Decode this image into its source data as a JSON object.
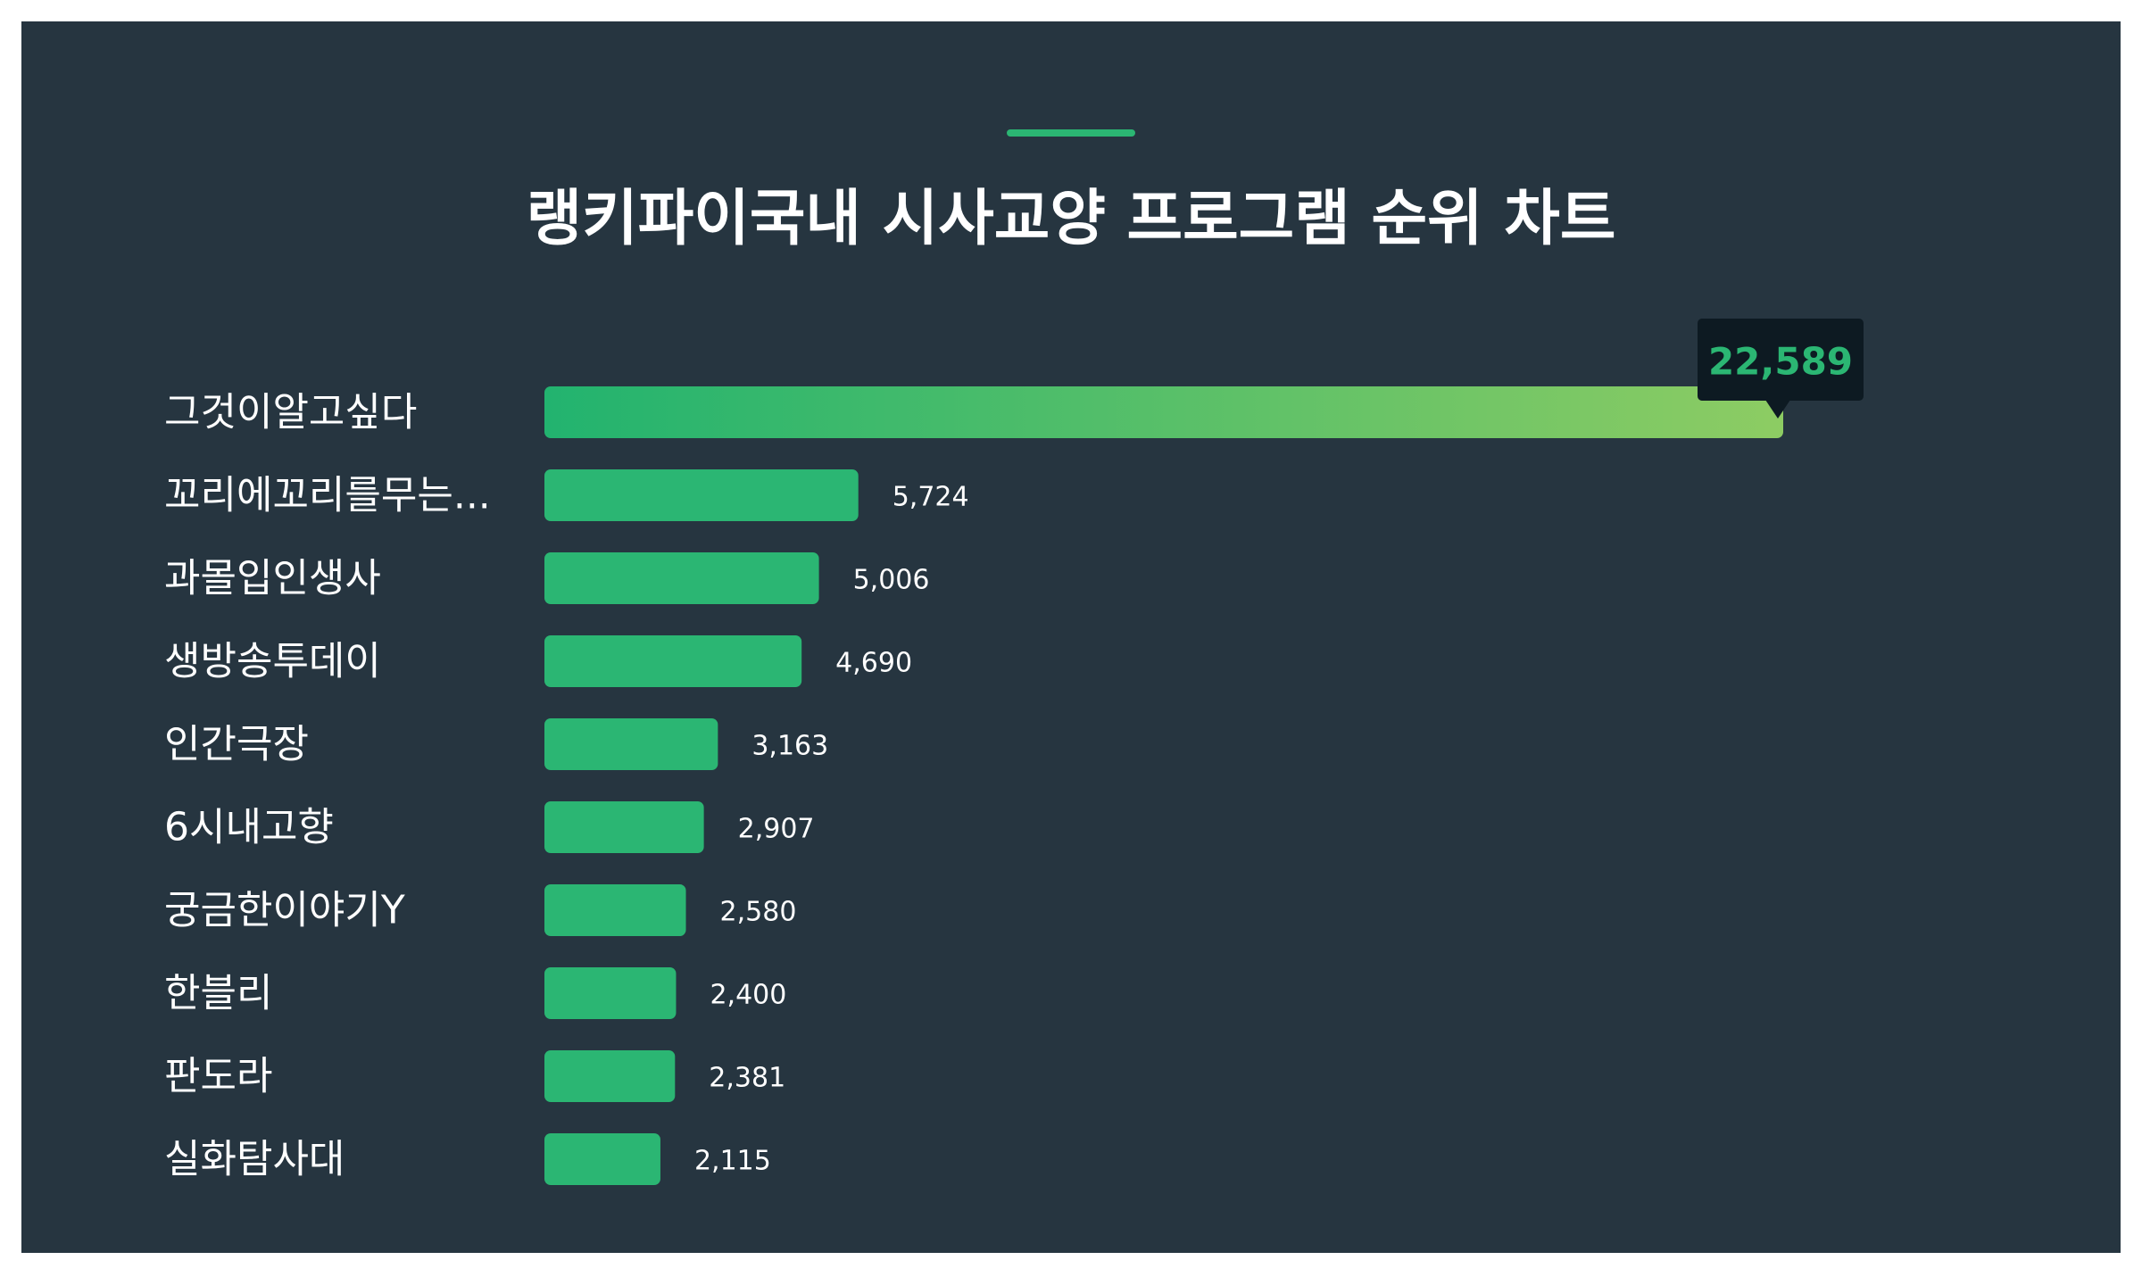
{
  "title": "랭키파이국내 시사교양 프로그램 순위 차트",
  "colors": {
    "background": "#263540",
    "bar": "#2bb673",
    "bar_gradient_start": "#22b36f",
    "bar_gradient_end": "#8dcc63",
    "tooltip_bg": "#0d1a22",
    "tooltip_text": "#2bb673",
    "text": "#ffffff"
  },
  "chart_data": {
    "type": "bar",
    "orientation": "horizontal",
    "title": "랭키파이국내 시사교양 프로그램 순위 차트",
    "categories": [
      "그것이알고싶다",
      "꼬리에꼬리를무는...",
      "과몰입인생사",
      "생방송투데이",
      "인간극장",
      "6시내고향",
      "궁금한이야기Y",
      "한블리",
      "판도라",
      "실화탐사대"
    ],
    "values": [
      22589,
      5724,
      5006,
      4690,
      3163,
      2907,
      2580,
      2400,
      2381,
      2115
    ],
    "value_labels": [
      "22,589",
      "5,724",
      "5,006",
      "4,690",
      "3,163",
      "2,907",
      "2,580",
      "2,400",
      "2,381",
      "2,115"
    ],
    "xlim": [
      0,
      22589
    ],
    "grid": false,
    "legend": "none",
    "highlight_index": 0
  }
}
